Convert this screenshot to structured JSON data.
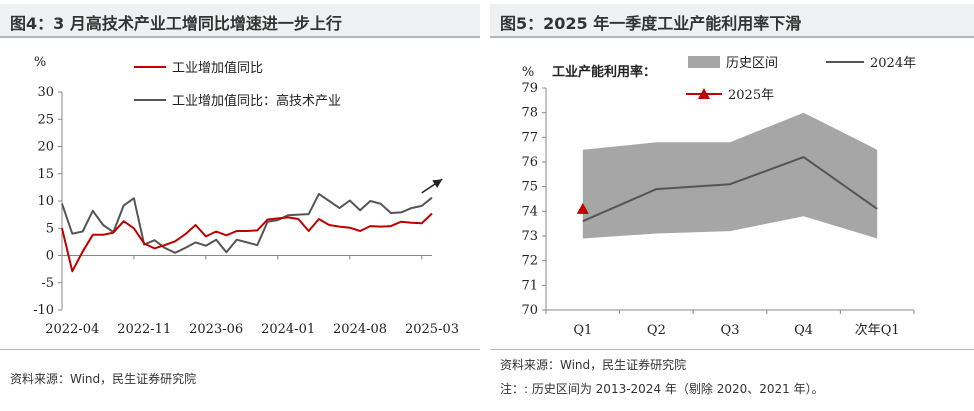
{
  "colors": {
    "red": "#c00000",
    "grey_line": "#555555",
    "band": "#a6a6a6",
    "axis": "#888888"
  },
  "charts": [
    {
      "title": "图4：3 月高技术产业工增同比增速进一步上行",
      "source": "资料来源：Wind，民生证券研究院",
      "chart_data": {
        "type": "line",
        "ylabel": "%",
        "ylim": [
          -10,
          30
        ],
        "yticks": [
          -10,
          -5,
          0,
          5,
          10,
          15,
          20,
          25,
          30
        ],
        "x_labels": [
          "2022-04",
          "2022-11",
          "2023-06",
          "2024-01",
          "2024-08",
          "2025-03"
        ],
        "x_start": "2022-03",
        "x_end": "2025-03",
        "series": [
          {
            "name": "工业增加值同比",
            "color": "#c00000",
            "values": [
              5.0,
              -2.9,
              0.7,
              3.8,
              3.8,
              4.2,
              6.3,
              5.0,
              2.2,
              1.3,
              1.9,
              2.6,
              3.9,
              5.6,
              3.5,
              4.4,
              3.7,
              4.5,
              4.5,
              4.6,
              6.6,
              6.8,
              7.0,
              6.7,
              4.5,
              6.7,
              5.6,
              5.3,
              5.1,
              4.5,
              5.4,
              5.3,
              5.4,
              6.2,
              6.0,
              5.9,
              7.7
            ]
          },
          {
            "name": "工业增加值同比：高技术产业",
            "color": "#555555",
            "values": [
              9.5,
              4.0,
              4.4,
              8.2,
              5.6,
              4.3,
              9.2,
              10.5,
              2.0,
              2.8,
              1.4,
              0.5,
              1.4,
              2.4,
              1.8,
              2.9,
              0.6,
              2.9,
              2.4,
              1.9,
              6.2,
              6.5,
              7.4,
              7.5,
              7.6,
              11.3,
              10.0,
              8.7,
              10.1,
              8.3,
              10.0,
              9.5,
              7.8,
              7.9,
              8.7,
              9.1,
              10.6
            ]
          }
        ],
        "annotations": [
          {
            "type": "arrow",
            "from": [
              "2025-02",
              11.5
            ],
            "to": [
              "2025-04",
              14
            ]
          }
        ]
      }
    },
    {
      "title": "图5：2025 年一季度工业产能利用率下滑",
      "source": "资料来源：Wind，民生证券研究院",
      "footnote": "注：: 历史区间为 2013-2024 年（剔除 2020、2021 年）。",
      "chart_data": {
        "type": "area",
        "ylabel": "%",
        "subtitle": "工业产能利用率：",
        "ylim": [
          70,
          79
        ],
        "yticks": [
          70,
          71,
          72,
          73,
          74,
          75,
          76,
          77,
          78,
          79
        ],
        "categories": [
          "Q1",
          "Q2",
          "Q3",
          "Q4",
          "次年Q1"
        ],
        "band": {
          "name": "历史区间",
          "low": [
            72.9,
            73.1,
            73.2,
            73.8,
            72.9
          ],
          "high": [
            76.5,
            76.8,
            76.8,
            78.0,
            76.5
          ]
        },
        "series": [
          {
            "name": "2024年",
            "kind": "line",
            "color": "#555555",
            "values": [
              73.6,
              74.9,
              75.1,
              76.2,
              74.1
            ]
          },
          {
            "name": "2025年",
            "kind": "marker",
            "color": "#c00000",
            "values": [
              74.1,
              null,
              null,
              null,
              null
            ]
          }
        ]
      }
    }
  ]
}
